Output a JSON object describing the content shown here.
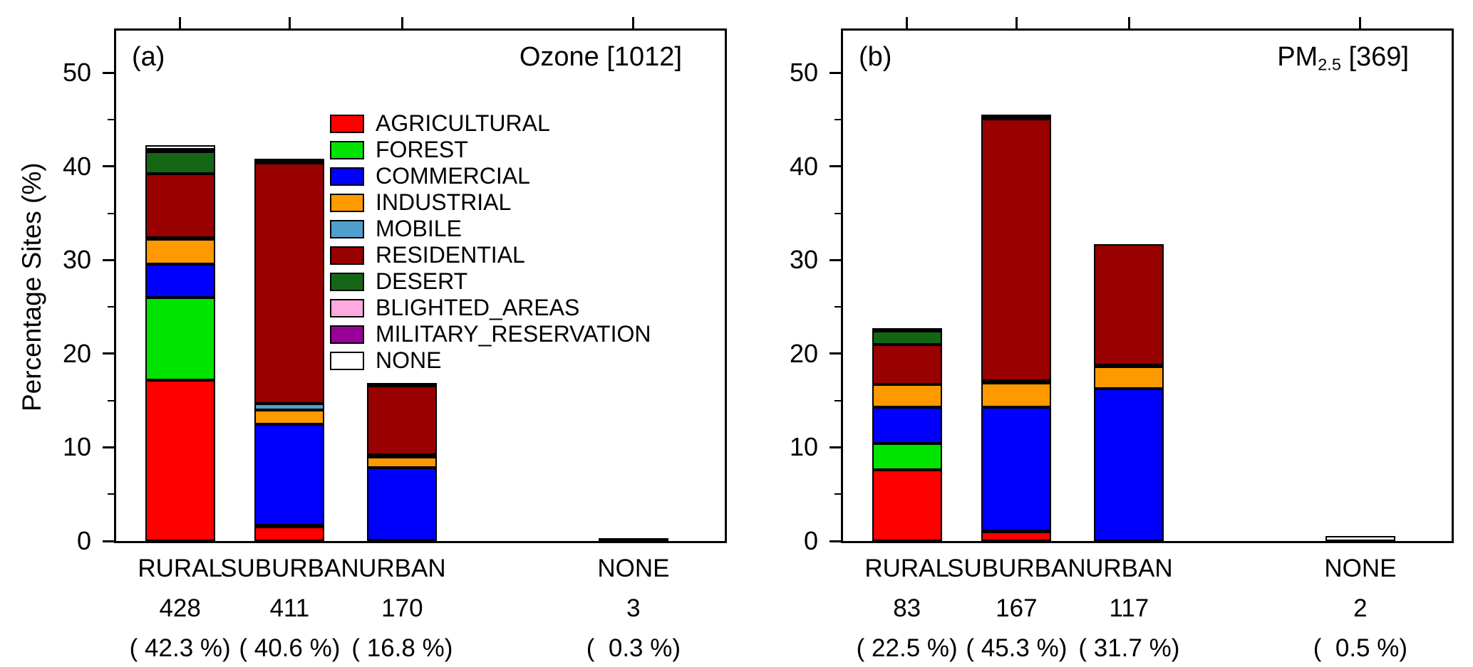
{
  "figure": {
    "ylabel": "Percentage Sites (%)",
    "ymax": 54.5,
    "yticks": [
      0,
      10,
      20,
      30,
      40,
      50
    ],
    "background": "#ffffff",
    "axis_color": "#000000"
  },
  "legend": {
    "position": "inside-top-left-panel-a",
    "entries": [
      {
        "label": "AGRICULTURAL",
        "color": "#ff0000"
      },
      {
        "label": "FOREST",
        "color": "#00e400"
      },
      {
        "label": "COMMERCIAL",
        "color": "#0000ff"
      },
      {
        "label": "INDUSTRIAL",
        "color": "#ff9900"
      },
      {
        "label": "MOBILE",
        "color": "#4f9ecd"
      },
      {
        "label": "RESIDENTIAL",
        "color": "#990000"
      },
      {
        "label": "DESERT",
        "color": "#146614"
      },
      {
        "label": "BLIGHTED_AREAS",
        "color": "#ffaade"
      },
      {
        "label": "MILITARY_RESERVATION",
        "color": "#990099"
      },
      {
        "label": "NONE",
        "color": "#ffffff"
      }
    ]
  },
  "chart_data": [
    {
      "type": "bar",
      "stacked": true,
      "panel_label": "(a)",
      "title_text": "Ozone [1012]",
      "title_parts": [
        {
          "t": "Ozone [1012]"
        }
      ],
      "total_sites": 1012,
      "categories": [
        "RURAL",
        "SUBURBAN",
        "URBAN",
        "NONE"
      ],
      "counts": [
        "428",
        "411",
        "170",
        "3"
      ],
      "percents": [
        "( 42.3 %)",
        "( 40.6 %)",
        "( 16.8 %)",
        "(  0.3 %)"
      ],
      "totals": [
        42.3,
        40.6,
        16.8,
        0.3
      ],
      "ylim": [
        0,
        54.5
      ],
      "series": [
        {
          "name": "AGRICULTURAL",
          "values": [
            17.2,
            1.5,
            0.1,
            0
          ]
        },
        {
          "name": "FOREST",
          "values": [
            8.8,
            0.2,
            0,
            0
          ]
        },
        {
          "name": "COMMERCIAL",
          "values": [
            3.6,
            10.8,
            7.7,
            0
          ]
        },
        {
          "name": "INDUSTRIAL",
          "values": [
            2.6,
            1.5,
            1.2,
            0
          ]
        },
        {
          "name": "MOBILE",
          "values": [
            0.2,
            0.7,
            0.2,
            0
          ]
        },
        {
          "name": "RESIDENTIAL",
          "values": [
            6.8,
            25.7,
            7.4,
            0
          ]
        },
        {
          "name": "DESERT",
          "values": [
            2.4,
            0.1,
            0,
            0
          ]
        },
        {
          "name": "BLIGHTED_AREAS",
          "values": [
            0.1,
            0,
            0,
            0
          ]
        },
        {
          "name": "MILITARY_RESERVATION",
          "values": [
            0.1,
            0,
            0,
            0
          ]
        },
        {
          "name": "NONE",
          "values": [
            0.5,
            0.1,
            0.2,
            0.3
          ]
        }
      ]
    },
    {
      "type": "bar",
      "stacked": true,
      "panel_label": "(b)",
      "title_text": "PM2.5 [369]",
      "title_parts": [
        {
          "t": "PM"
        },
        {
          "s": "2.5"
        },
        {
          "t": " [369]"
        }
      ],
      "total_sites": 369,
      "categories": [
        "RURAL",
        "SUBURBAN",
        "URBAN",
        "NONE"
      ],
      "counts": [
        "83",
        "167",
        "117",
        "2"
      ],
      "percents": [
        "( 22.5 %)",
        "( 45.3 %)",
        "( 31.7 %)",
        "(  0.5 %)"
      ],
      "totals": [
        22.5,
        45.3,
        31.7,
        0.5
      ],
      "ylim": [
        0,
        54.5
      ],
      "series": [
        {
          "name": "AGRICULTURAL",
          "values": [
            7.6,
            1.0,
            0,
            0
          ]
        },
        {
          "name": "FOREST",
          "values": [
            2.8,
            0.1,
            0,
            0
          ]
        },
        {
          "name": "COMMERCIAL",
          "values": [
            3.9,
            13.2,
            16.3,
            0
          ]
        },
        {
          "name": "INDUSTRIAL",
          "values": [
            2.4,
            2.6,
            2.3,
            0
          ]
        },
        {
          "name": "MOBILE",
          "values": [
            0,
            0.2,
            0.2,
            0
          ]
        },
        {
          "name": "RESIDENTIAL",
          "values": [
            4.3,
            28.0,
            12.9,
            0
          ]
        },
        {
          "name": "DESERT",
          "values": [
            1.4,
            0.1,
            0,
            0
          ]
        },
        {
          "name": "BLIGHTED_AREAS",
          "values": [
            0,
            0,
            0,
            0
          ]
        },
        {
          "name": "MILITARY_RESERVATION",
          "values": [
            0,
            0,
            0,
            0
          ]
        },
        {
          "name": "NONE",
          "values": [
            0.1,
            0.1,
            0,
            0.5
          ]
        }
      ]
    }
  ]
}
